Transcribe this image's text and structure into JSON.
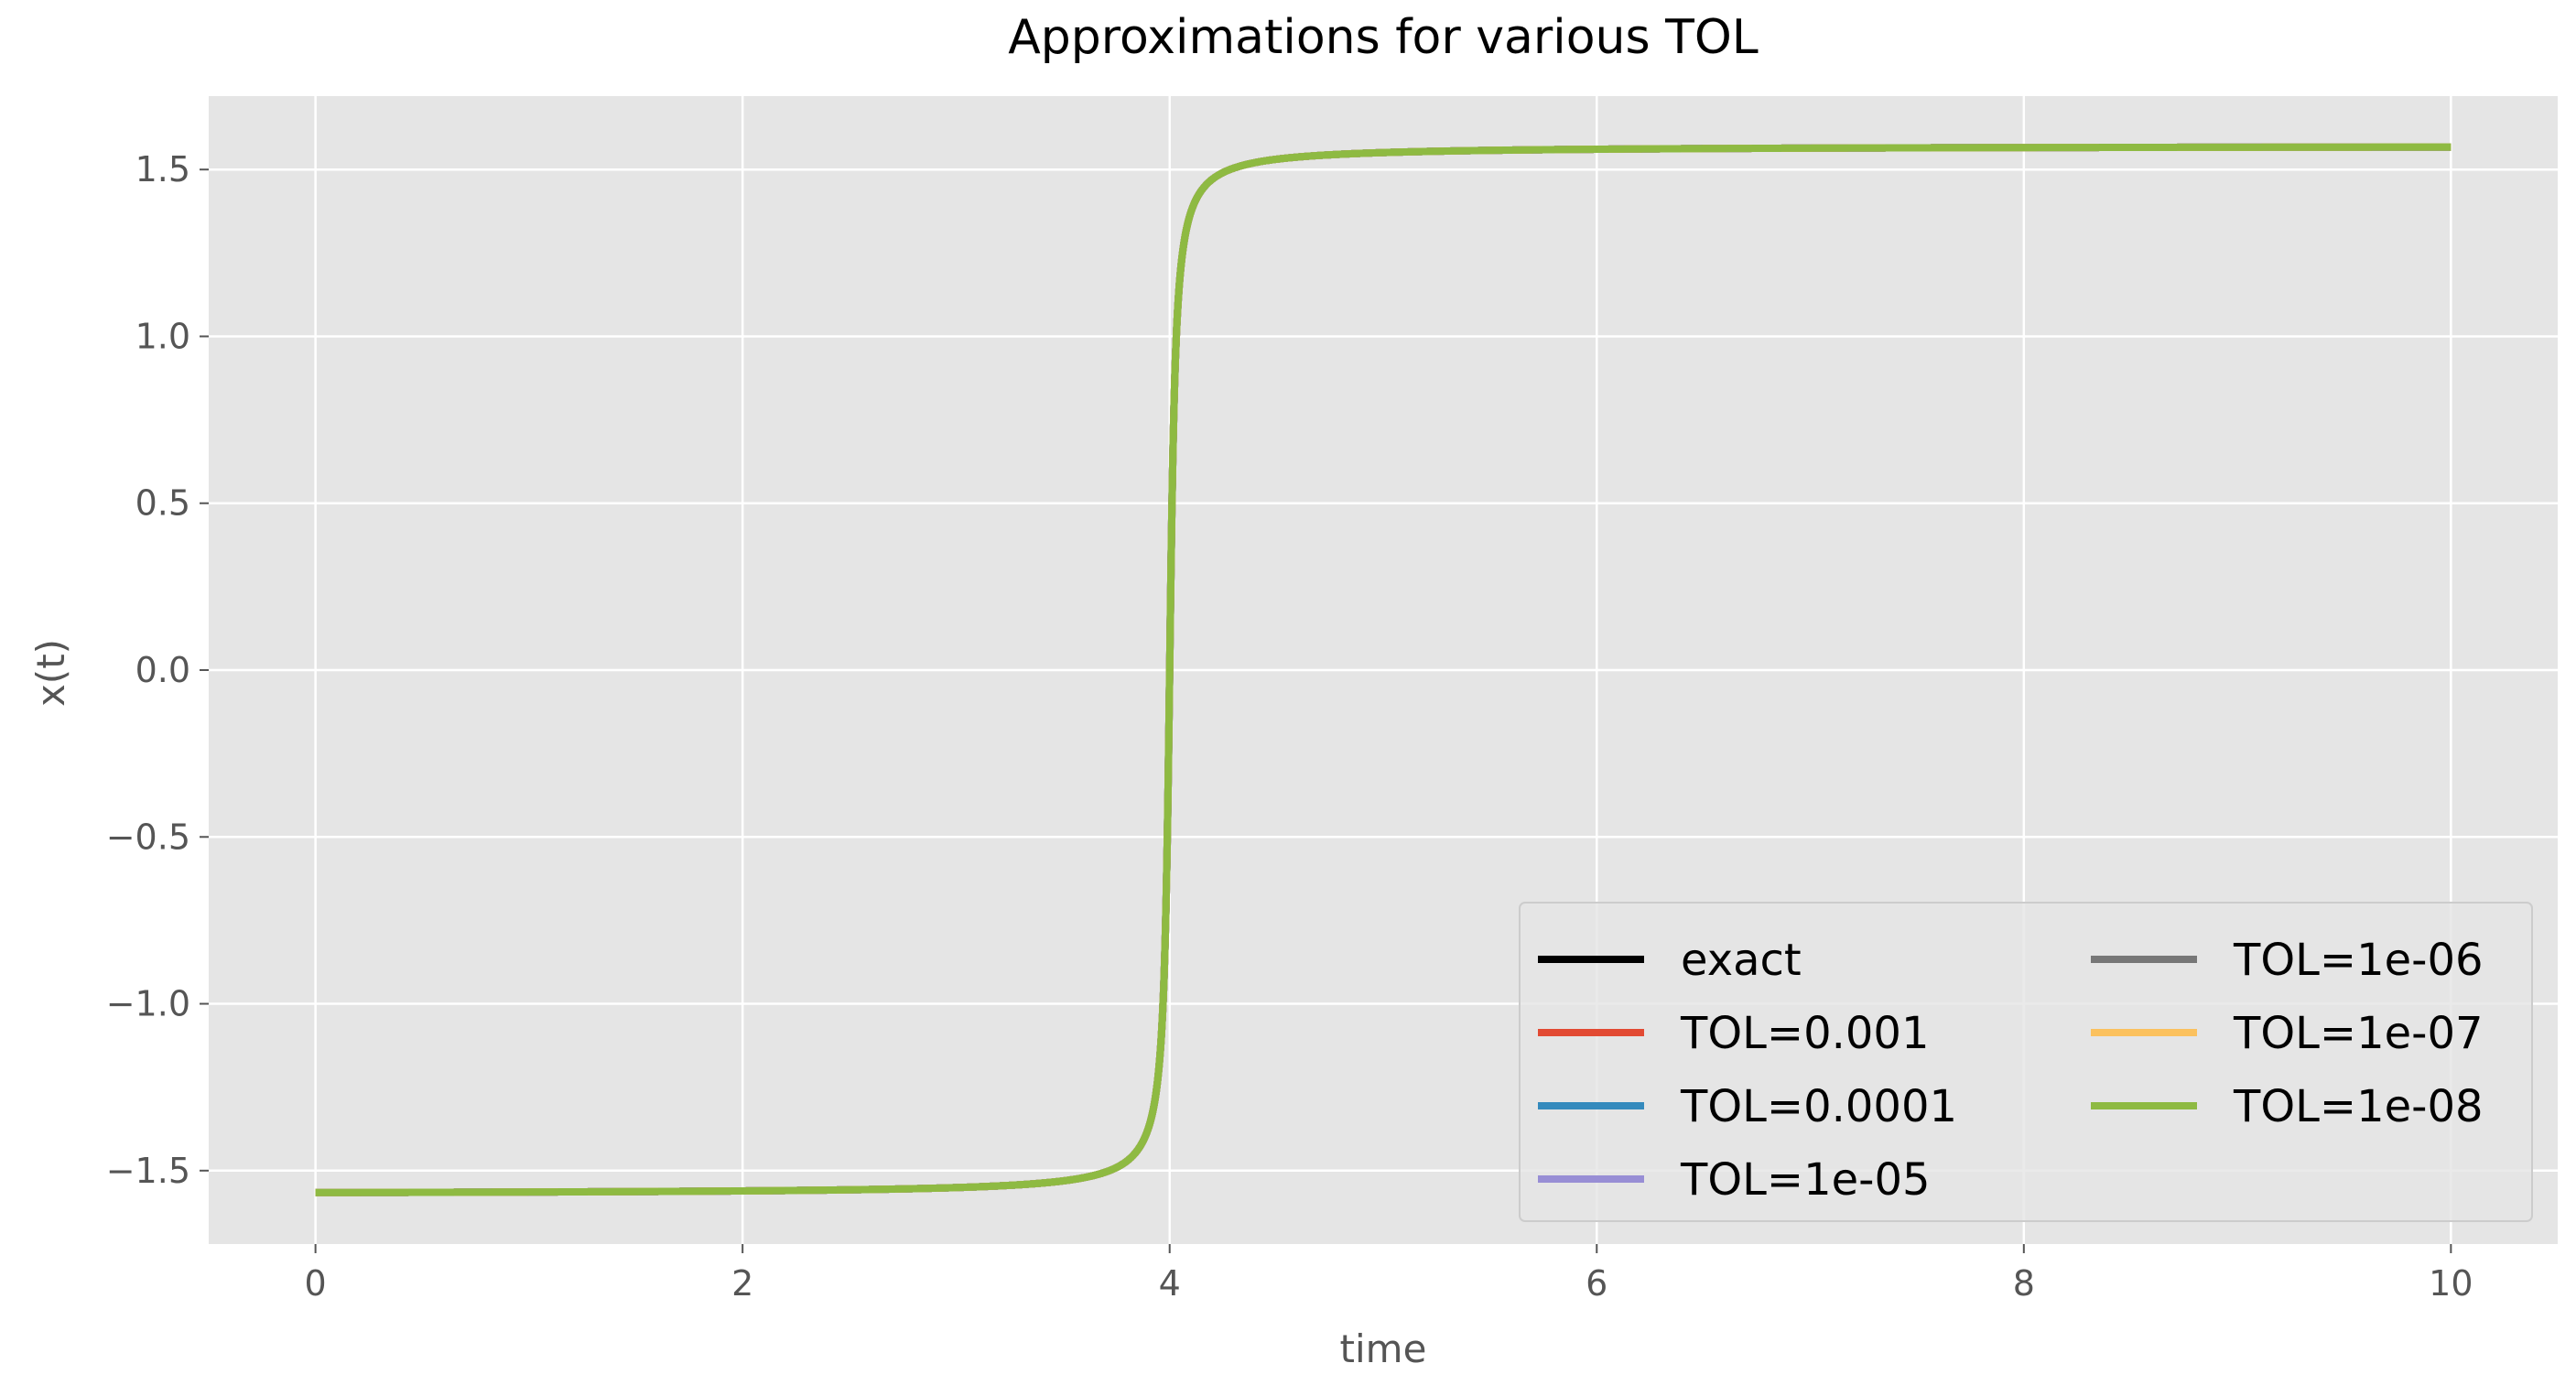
{
  "chart_data": {
    "type": "line",
    "title": "Approximations for various TOL",
    "xlabel": "time",
    "ylabel": "x(t)",
    "xlim": [
      -0.5,
      10.5
    ],
    "ylim": [
      -1.72,
      1.72
    ],
    "xticks": [
      0,
      2,
      4,
      6,
      8,
      10
    ],
    "xtick_labels": [
      "0",
      "2",
      "4",
      "6",
      "8",
      "10"
    ],
    "yticks": [
      -1.5,
      -1.0,
      -0.5,
      0.0,
      0.5,
      1.0,
      1.5
    ],
    "ytick_labels": [
      "−1.5",
      "−1.0",
      "−0.5",
      "0.0",
      "0.5",
      "1.0",
      "1.5"
    ],
    "grid": true,
    "background": "#e5e5e5",
    "legend_position": "lower-right",
    "legend_columns": 2,
    "curve_description": "x(t) = arctan(k*(t-4)) with k = 50; all series overlap",
    "series": [
      {
        "name": "exact",
        "color": "#000000"
      },
      {
        "name": "TOL=0.001",
        "color": "#e24a33"
      },
      {
        "name": "TOL=0.0001",
        "color": "#348abd"
      },
      {
        "name": "TOL=1e-05",
        "color": "#988ed5"
      },
      {
        "name": "TOL=1e-06",
        "color": "#777777"
      },
      {
        "name": "TOL=1e-07",
        "color": "#fbc15e"
      },
      {
        "name": "TOL=1e-08",
        "color": "#8eba42"
      }
    ],
    "x": [
      0,
      1,
      2,
      3,
      3.5,
      3.8,
      3.9,
      3.95,
      3.98,
      4.0,
      4.02,
      4.05,
      4.1,
      4.2,
      4.5,
      5,
      6,
      7,
      8,
      9,
      10
    ],
    "y": [
      -1.566,
      -1.564,
      -1.561,
      -1.551,
      -1.531,
      -1.471,
      -1.373,
      -1.19,
      -0.785,
      0.0,
      0.785,
      1.19,
      1.373,
      1.471,
      1.531,
      1.551,
      1.561,
      1.564,
      1.566,
      1.567,
      1.567
    ]
  }
}
